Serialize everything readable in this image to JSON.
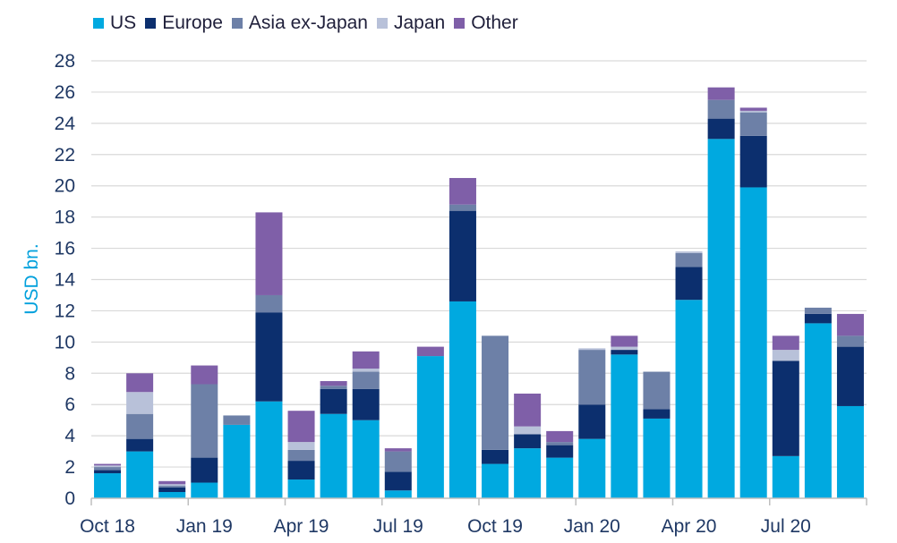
{
  "chart_data": {
    "type": "bar",
    "stacked": true,
    "title": "",
    "xlabel": "",
    "ylabel": "USD bn.",
    "ylim": [
      0,
      28
    ],
    "yticks": [
      0,
      2,
      4,
      6,
      8,
      10,
      12,
      14,
      16,
      18,
      20,
      22,
      24,
      26,
      28
    ],
    "grid": true,
    "legend_position": "top-left",
    "categories": [
      "Oct 18",
      "Nov 18",
      "Dec 18",
      "Jan 19",
      "Feb 19",
      "Mar 19",
      "Apr 19",
      "May 19",
      "Jun 19",
      "Jul 19",
      "Aug 19",
      "Sep 19",
      "Oct 19",
      "Nov 19",
      "Dec 19",
      "Jan 20",
      "Feb 20",
      "Mar 20",
      "Apr 20",
      "May 20",
      "Jun 20",
      "Jul 20",
      "Aug 20",
      "Sep 20"
    ],
    "xtick_labels": [
      {
        "index": 0,
        "label": "Oct 18"
      },
      {
        "index": 3,
        "label": "Jan 19"
      },
      {
        "index": 6,
        "label": "Apr 19"
      },
      {
        "index": 9,
        "label": "Jul 19"
      },
      {
        "index": 12,
        "label": "Oct 19"
      },
      {
        "index": 15,
        "label": "Jan 20"
      },
      {
        "index": 18,
        "label": "Apr 20"
      },
      {
        "index": 21,
        "label": "Jul 20"
      }
    ],
    "series": [
      {
        "name": "US",
        "color": "#00a9e0",
        "values": [
          1.6,
          3.0,
          0.4,
          1.0,
          4.7,
          6.2,
          1.2,
          5.4,
          5.0,
          0.5,
          9.1,
          12.6,
          2.2,
          3.2,
          2.6,
          3.8,
          9.2,
          5.1,
          12.7,
          23.0,
          19.9,
          2.7,
          11.2,
          5.9
        ]
      },
      {
        "name": "Europe",
        "color": "#0c2f6e",
        "values": [
          0.2,
          0.8,
          0.3,
          1.6,
          0.0,
          5.7,
          1.2,
          1.6,
          2.0,
          1.2,
          0.0,
          5.8,
          0.9,
          0.9,
          0.8,
          2.2,
          0.3,
          0.6,
          2.1,
          1.3,
          3.3,
          6.1,
          0.6,
          3.8
        ]
      },
      {
        "name": "Asia ex-Japan",
        "color": "#6d80a7",
        "values": [
          0.2,
          1.6,
          0.1,
          4.7,
          0.6,
          1.1,
          0.7,
          0.2,
          1.1,
          1.3,
          0.0,
          0.4,
          7.3,
          0.0,
          0.2,
          3.5,
          0.0,
          2.4,
          0.9,
          1.2,
          1.5,
          0.0,
          0.4,
          0.7
        ]
      },
      {
        "name": "Japan",
        "color": "#b8c1d9",
        "values": [
          0.1,
          1.4,
          0.1,
          0.0,
          0.0,
          0.0,
          0.5,
          0.0,
          0.2,
          0.0,
          0.0,
          0.0,
          0.0,
          0.5,
          0.0,
          0.1,
          0.2,
          0.0,
          0.1,
          0.0,
          0.1,
          0.7,
          0.0,
          0.0
        ]
      },
      {
        "name": "Other",
        "color": "#7f5fa8",
        "values": [
          0.1,
          1.2,
          0.2,
          1.2,
          0.0,
          5.3,
          2.0,
          0.3,
          1.1,
          0.2,
          0.6,
          1.7,
          0.0,
          2.1,
          0.7,
          0.0,
          0.7,
          0.0,
          0.0,
          0.8,
          0.2,
          0.9,
          0.0,
          1.4
        ]
      }
    ]
  }
}
